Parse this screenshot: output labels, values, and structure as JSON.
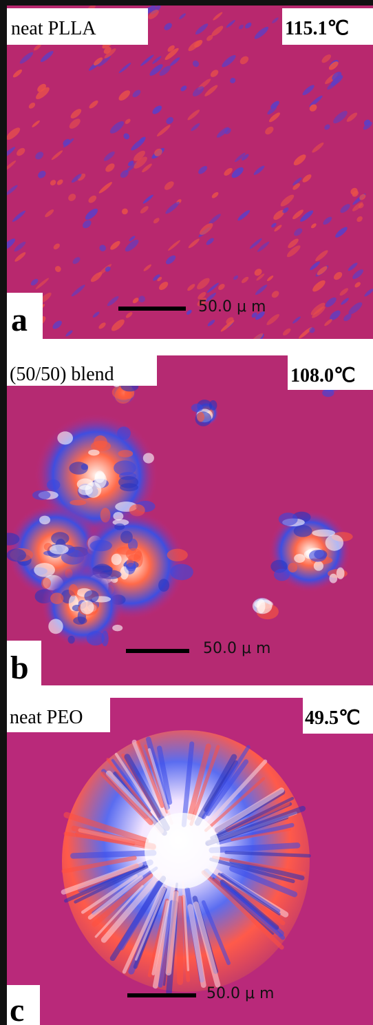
{
  "panels": [
    {
      "sample": "neat PLLA",
      "temperature": "115.1℃",
      "scale_bar": "50.0 μ m",
      "letter": "a"
    },
    {
      "sample": "(50/50) blend",
      "temperature": "108.0℃",
      "scale_bar": "50.0 μ m",
      "letter": "b"
    },
    {
      "sample": "neat PEO",
      "temperature": "49.5℃",
      "scale_bar": "50.0 μ m",
      "letter": "c"
    }
  ]
}
